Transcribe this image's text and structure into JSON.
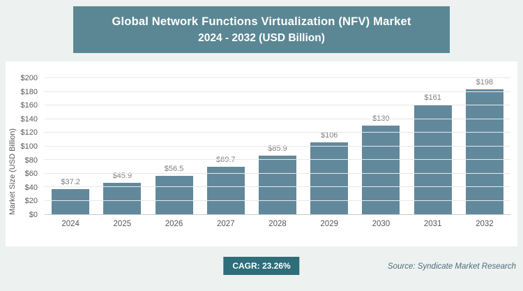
{
  "header": {
    "title_line1": "Global Network Functions Virtualization (NFV) Market",
    "title_line2": "2024 - 2032 (USD Billion)"
  },
  "chart_data": {
    "type": "bar",
    "title": "Global Network Functions Virtualization (NFV) Market 2024 - 2032 (USD Billion)",
    "categories": [
      "2024",
      "2025",
      "2026",
      "2027",
      "2028",
      "2029",
      "2030",
      "2031",
      "2032"
    ],
    "values": [
      37.2,
      45.9,
      56.5,
      69.7,
      85.9,
      106,
      130,
      161,
      198
    ],
    "value_labels": [
      "$37.2",
      "$45.9",
      "$56.5",
      "$69.7",
      "$85.9",
      "$106",
      "$130",
      "$161",
      "$198"
    ],
    "xlabel": "",
    "ylabel": "Market Size (USD Billion)",
    "ylim": [
      0,
      200
    ],
    "ytick_step": 20,
    "yticks": [
      "$0",
      "$20",
      "$40",
      "$60",
      "$80",
      "$100",
      "$120",
      "$140",
      "$160",
      "$180",
      "$200"
    ],
    "grid": true,
    "legend": "none",
    "bar_color": "#62899b"
  },
  "footer": {
    "cagr_label": "CAGR: 23.26%",
    "source": "Source: Syndicate Market Research"
  },
  "colors": {
    "page_bg": "#edf1f0",
    "panel_bg": "#ffffff",
    "header_bg": "#5b8794",
    "bar": "#62899b",
    "badge_bg": "#2e6d7a",
    "gridline": "#e5e9ea"
  }
}
